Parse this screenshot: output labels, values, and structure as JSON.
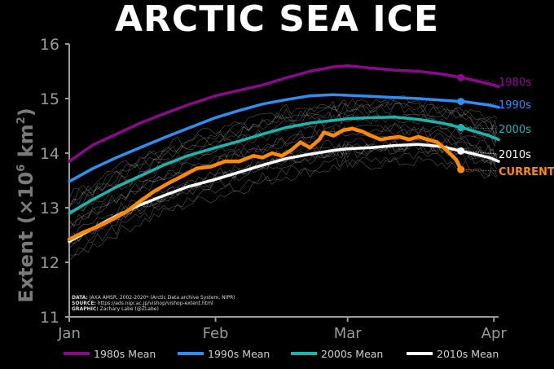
{
  "title": "ARCTIC SEA ICE",
  "source_note": {
    "data_label": "DATA:",
    "data_text": "JAXA AMSR, 2002-2020* (Arctic Data archive System, NIPR)",
    "source_label": "SOURCE:",
    "source_text": "https://ads.nipr.ac.jp/vishop/vishop-extent.html",
    "graphic_label": "GRAPHIC:",
    "graphic_text": "Zachary Labe (@ZLabe)"
  },
  "chart_data": {
    "type": "line",
    "title": "ARCTIC SEA ICE",
    "ylabel": "Extent (×10⁶ km²)",
    "ylabel_main": "Extent (",
    "ylabel_times": "×10",
    "ylabel_exp": "6",
    "ylabel_unit": " km",
    "ylabel_sq": "2",
    "ylabel_close": ")",
    "xlim": [
      0,
      91
    ],
    "ylim": [
      11,
      16
    ],
    "yticks": [
      11,
      12,
      13,
      14,
      15,
      16
    ],
    "yticklabels": [
      "11",
      "12",
      "13",
      "14",
      "15",
      "16"
    ],
    "xticks": [
      0,
      31,
      59,
      90
    ],
    "xticklabels": [
      "Jan",
      "Feb",
      "Mar",
      "Apr"
    ],
    "grid": false,
    "legend_position": "bottom",
    "series": [
      {
        "name": "1980s Mean",
        "end_label": "1980s",
        "color": "#8B0A8B",
        "x": [
          0,
          5,
          10,
          15,
          20,
          25,
          31,
          36,
          41,
          46,
          51,
          56,
          59,
          64,
          69,
          74,
          79,
          84,
          89,
          91
        ],
        "y": [
          13.85,
          14.15,
          14.35,
          14.55,
          14.72,
          14.88,
          15.05,
          15.15,
          15.25,
          15.38,
          15.5,
          15.58,
          15.6,
          15.56,
          15.52,
          15.5,
          15.45,
          15.37,
          15.27,
          15.22
        ]
      },
      {
        "name": "1990s Mean",
        "end_label": "1990s",
        "color": "#2E8FF0",
        "x": [
          0,
          5,
          10,
          15,
          20,
          25,
          31,
          36,
          41,
          46,
          51,
          56,
          59,
          64,
          69,
          74,
          79,
          84,
          89,
          91
        ],
        "y": [
          13.48,
          13.72,
          13.92,
          14.1,
          14.28,
          14.45,
          14.65,
          14.78,
          14.9,
          14.98,
          15.05,
          15.07,
          15.06,
          15.04,
          15.02,
          15.0,
          14.97,
          14.94,
          14.88,
          14.84
        ]
      },
      {
        "name": "2000s Mean",
        "end_label": "2000s",
        "color": "#1BB5AD",
        "x": [
          0,
          5,
          10,
          15,
          20,
          25,
          31,
          36,
          41,
          46,
          51,
          56,
          59,
          64,
          69,
          74,
          79,
          84,
          89,
          91
        ],
        "y": [
          12.9,
          13.15,
          13.38,
          13.58,
          13.78,
          13.95,
          14.1,
          14.22,
          14.35,
          14.47,
          14.55,
          14.6,
          14.63,
          14.65,
          14.66,
          14.62,
          14.55,
          14.45,
          14.32,
          14.25
        ]
      },
      {
        "name": "2010s Mean",
        "end_label": "2010s",
        "color": "#FFFFFF",
        "x": [
          0,
          5,
          10,
          15,
          20,
          25,
          31,
          36,
          41,
          46,
          51,
          56,
          59,
          64,
          69,
          74,
          79,
          84,
          89,
          91
        ],
        "y": [
          12.38,
          12.62,
          12.85,
          13.05,
          13.22,
          13.38,
          13.52,
          13.65,
          13.78,
          13.9,
          13.98,
          14.05,
          14.08,
          14.1,
          14.14,
          14.16,
          14.12,
          14.02,
          13.92,
          13.85
        ]
      },
      {
        "name": "Current",
        "end_label": "CURRENT",
        "color": "#FF8A00",
        "x": [
          0,
          3,
          6,
          9,
          12,
          15,
          18,
          21,
          24,
          27,
          30,
          33,
          36,
          39,
          41,
          43,
          45,
          47,
          49,
          51,
          53,
          54,
          56,
          58,
          60,
          62,
          64,
          66,
          68,
          70,
          72,
          74,
          76,
          78,
          80,
          82,
          83
        ],
        "y": [
          12.42,
          12.55,
          12.65,
          12.78,
          12.92,
          13.12,
          13.3,
          13.45,
          13.58,
          13.72,
          13.75,
          13.85,
          13.85,
          13.95,
          13.92,
          14.0,
          13.95,
          14.05,
          14.2,
          14.1,
          14.25,
          14.38,
          14.32,
          14.42,
          14.45,
          14.4,
          14.32,
          14.25,
          14.28,
          14.3,
          14.25,
          14.3,
          14.25,
          14.2,
          14.05,
          13.88,
          13.7
        ]
      }
    ]
  }
}
